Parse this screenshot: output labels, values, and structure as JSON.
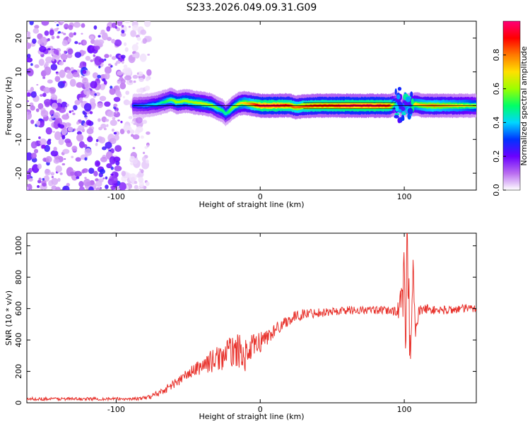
{
  "title": "S233.2026.049.09.31.G09",
  "chart_data": [
    {
      "type": "heatmap",
      "xlabel": "Height of straight line (km)",
      "ylabel": "Frequency (Hz)",
      "xlim": [
        -162,
        150
      ],
      "ylim": [
        -25,
        25
      ],
      "x_ticks": [
        -100,
        0,
        100
      ],
      "y_ticks": [
        -20,
        -10,
        0,
        10,
        20
      ],
      "colorbar": {
        "label": "Normalized spectral amplitude",
        "range": [
          0.0,
          1.0
        ],
        "ticks": [
          0.0,
          0.2,
          0.4,
          0.6,
          0.8
        ],
        "colors": [
          "#ffffff",
          "#b96cf0",
          "#6a00ff",
          "#0033ff",
          "#00d6ff",
          "#00ff66",
          "#9cff00",
          "#ffe000",
          "#ff7a00",
          "#ff0000",
          "#ff0077"
        ]
      },
      "noise_region_x": [
        -162,
        -85
      ],
      "ridge": {
        "x": [
          -88,
          -80,
          -72,
          -66,
          -62,
          -58,
          -52,
          -46,
          -40,
          -34,
          -30,
          -26,
          -24,
          -22,
          -20,
          -18,
          -15,
          -12,
          -8,
          -4,
          0,
          10,
          20,
          25,
          30,
          40,
          50,
          60,
          70,
          80,
          90,
          94,
          96,
          98,
          100,
          102,
          104,
          108,
          112,
          120,
          130,
          140,
          150
        ],
        "y": [
          0,
          0,
          0.5,
          1.2,
          1.8,
          1.0,
          1.4,
          1.0,
          0.6,
          0.2,
          -0.8,
          -1.5,
          -2.5,
          -1.8,
          -1.0,
          -0.3,
          0.5,
          0.8,
          0.6,
          0.3,
          0,
          0,
          0.1,
          -0.5,
          -0.2,
          0,
          0,
          0,
          0,
          0,
          0,
          0.5,
          1.0,
          -1.0,
          0.5,
          0,
          0.3,
          0.5,
          0.1,
          0,
          0,
          0,
          0
        ],
        "amplitude": [
          0.3,
          0.35,
          0.4,
          0.5,
          0.55,
          0.6,
          0.6,
          0.6,
          0.65,
          0.6,
          0.55,
          0.5,
          0.45,
          0.5,
          0.55,
          0.6,
          0.65,
          0.7,
          0.75,
          0.85,
          0.95,
          0.95,
          0.9,
          0.8,
          0.85,
          0.9,
          0.9,
          0.95,
          0.95,
          0.95,
          0.9,
          0.5,
          0.3,
          0.25,
          0.35,
          0.5,
          0.6,
          0.7,
          0.75,
          0.8,
          0.75,
          0.7,
          0.6
        ]
      }
    },
    {
      "type": "line",
      "xlabel": "Height of straight line (km)",
      "ylabel": "SNR (10 * v/v)",
      "xlim": [
        -162,
        150
      ],
      "ylim": [
        0,
        1080
      ],
      "x_ticks": [
        -100,
        0,
        100
      ],
      "y_ticks": [
        0,
        200,
        400,
        600,
        800,
        1000
      ],
      "color": "#e8342e",
      "series": [
        {
          "name": "SNR",
          "x": [
            -162,
            -140,
            -120,
            -100,
            -90,
            -80,
            -75,
            -70,
            -65,
            -60,
            -55,
            -50,
            -45,
            -40,
            -35,
            -30,
            -25,
            -20,
            -15,
            -10,
            -5,
            0,
            5,
            10,
            15,
            20,
            25,
            30,
            40,
            50,
            60,
            70,
            80,
            90,
            95,
            98,
            100,
            101,
            102,
            104,
            106,
            108,
            110,
            115,
            120,
            130,
            140,
            150
          ],
          "y": [
            25,
            25,
            25,
            25,
            25,
            30,
            45,
            65,
            90,
            120,
            150,
            185,
            210,
            240,
            260,
            280,
            300,
            330,
            330,
            300,
            350,
            390,
            420,
            460,
            500,
            530,
            550,
            565,
            575,
            580,
            590,
            590,
            590,
            585,
            590,
            620,
            760,
            300,
            1060,
            350,
            900,
            420,
            580,
            600,
            590,
            590,
            600,
            600
          ],
          "noise_amplitude": [
            10,
            10,
            10,
            10,
            10,
            12,
            18,
            22,
            26,
            30,
            34,
            38,
            45,
            55,
            70,
            80,
            90,
            100,
            110,
            100,
            90,
            70,
            55,
            45,
            40,
            38,
            36,
            34,
            30,
            28,
            28,
            26,
            26,
            26,
            40,
            120,
            250,
            250,
            250,
            200,
            150,
            80,
            40,
            30,
            28,
            28,
            28,
            28
          ]
        }
      ]
    }
  ]
}
